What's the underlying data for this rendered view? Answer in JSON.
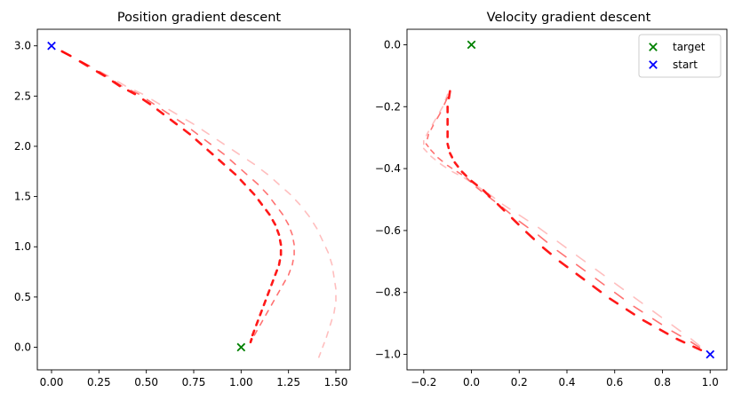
{
  "chart_data": [
    {
      "type": "scatter",
      "title": "Position gradient descent",
      "xlabel": "",
      "ylabel": "",
      "xlim": [
        -0.075,
        1.575
      ],
      "ylim": [
        -0.225,
        3.165
      ],
      "xticks": [
        0.0,
        0.25,
        0.5,
        0.75,
        1.0,
        1.25,
        1.5
      ],
      "xtick_labels": [
        "0.00",
        "0.25",
        "0.50",
        "0.75",
        "1.00",
        "1.25",
        "1.50"
      ],
      "yticks": [
        0.0,
        0.5,
        1.0,
        1.5,
        2.0,
        2.5,
        3.0
      ],
      "ytick_labels": [
        "0.0",
        "0.5",
        "1.0",
        "1.5",
        "2.0",
        "2.5",
        "3.0"
      ],
      "grid": false,
      "legend": null,
      "markers": [
        {
          "label": "target",
          "x": 1.0,
          "y": 0.0,
          "marker": "x",
          "color": "#008000"
        },
        {
          "label": "start",
          "x": 0.0,
          "y": 3.0,
          "marker": "x",
          "color": "#0000ff"
        }
      ],
      "trajectory_color": "#ff0000",
      "trajectories": [
        {
          "opacity": 0.9,
          "points": [
            [
              0.0,
              3.0
            ],
            [
              0.1,
              2.9
            ],
            [
              0.19,
              2.8
            ],
            [
              0.28,
              2.7
            ],
            [
              0.36,
              2.6
            ],
            [
              0.44,
              2.52
            ],
            [
              0.52,
              2.42
            ],
            [
              0.59,
              2.32
            ],
            [
              0.66,
              2.22
            ],
            [
              0.73,
              2.12
            ],
            [
              0.79,
              2.02
            ],
            [
              0.85,
              1.92
            ],
            [
              0.91,
              1.82
            ],
            [
              0.97,
              1.72
            ],
            [
              1.02,
              1.62
            ],
            [
              1.07,
              1.52
            ],
            [
              1.11,
              1.42
            ],
            [
              1.15,
              1.32
            ],
            [
              1.18,
              1.22
            ],
            [
              1.2,
              1.12
            ],
            [
              1.21,
              1.02
            ],
            [
              1.21,
              0.92
            ],
            [
              1.2,
              0.82
            ],
            [
              1.18,
              0.72
            ],
            [
              1.16,
              0.62
            ],
            [
              1.14,
              0.52
            ],
            [
              1.12,
              0.42
            ],
            [
              1.1,
              0.32
            ],
            [
              1.08,
              0.22
            ],
            [
              1.06,
              0.12
            ],
            [
              1.05,
              0.05
            ]
          ]
        },
        {
          "opacity": 0.55,
          "points": [
            [
              0.0,
              3.0
            ],
            [
              0.1,
              2.9
            ],
            [
              0.2,
              2.8
            ],
            [
              0.29,
              2.7
            ],
            [
              0.37,
              2.6
            ],
            [
              0.46,
              2.52
            ],
            [
              0.54,
              2.42
            ],
            [
              0.62,
              2.32
            ],
            [
              0.7,
              2.22
            ],
            [
              0.77,
              2.12
            ],
            [
              0.84,
              2.02
            ],
            [
              0.91,
              1.92
            ],
            [
              0.97,
              1.82
            ],
            [
              1.03,
              1.72
            ],
            [
              1.09,
              1.62
            ],
            [
              1.14,
              1.52
            ],
            [
              1.18,
              1.42
            ],
            [
              1.22,
              1.32
            ],
            [
              1.25,
              1.22
            ],
            [
              1.27,
              1.12
            ],
            [
              1.28,
              1.02
            ],
            [
              1.28,
              0.92
            ],
            [
              1.27,
              0.82
            ],
            [
              1.25,
              0.72
            ],
            [
              1.22,
              0.62
            ],
            [
              1.19,
              0.52
            ],
            [
              1.16,
              0.42
            ],
            [
              1.13,
              0.32
            ],
            [
              1.1,
              0.22
            ],
            [
              1.07,
              0.12
            ],
            [
              1.05,
              0.05
            ]
          ]
        },
        {
          "opacity": 0.25,
          "points": [
            [
              0.0,
              3.0
            ],
            [
              0.1,
              2.9
            ],
            [
              0.2,
              2.8
            ],
            [
              0.3,
              2.7
            ],
            [
              0.39,
              2.6
            ],
            [
              0.48,
              2.52
            ],
            [
              0.57,
              2.42
            ],
            [
              0.66,
              2.32
            ],
            [
              0.75,
              2.22
            ],
            [
              0.83,
              2.12
            ],
            [
              0.91,
              2.02
            ],
            [
              0.99,
              1.92
            ],
            [
              1.07,
              1.82
            ],
            [
              1.14,
              1.72
            ],
            [
              1.2,
              1.62
            ],
            [
              1.26,
              1.52
            ],
            [
              1.31,
              1.42
            ],
            [
              1.36,
              1.3
            ],
            [
              1.4,
              1.18
            ],
            [
              1.43,
              1.06
            ],
            [
              1.46,
              0.94
            ],
            [
              1.48,
              0.82
            ],
            [
              1.49,
              0.7
            ],
            [
              1.5,
              0.58
            ],
            [
              1.5,
              0.46
            ],
            [
              1.49,
              0.34
            ],
            [
              1.47,
              0.22
            ],
            [
              1.45,
              0.1
            ],
            [
              1.43,
              0.0
            ],
            [
              1.41,
              -0.1
            ]
          ]
        }
      ]
    },
    {
      "type": "scatter",
      "title": "Velocity gradient descent",
      "xlabel": "",
      "ylabel": "",
      "xlim": [
        -0.27,
        1.07
      ],
      "ylim": [
        -1.05,
        0.05
      ],
      "xticks": [
        -0.2,
        0.0,
        0.2,
        0.4,
        0.6,
        0.8,
        1.0
      ],
      "xtick_labels": [
        "−0.2",
        "0.0",
        "0.2",
        "0.4",
        "0.6",
        "0.8",
        "1.0"
      ],
      "yticks": [
        -1.0,
        -0.8,
        -0.6,
        -0.4,
        -0.2,
        0.0
      ],
      "ytick_labels": [
        "−1.0",
        "−0.8",
        "−0.6",
        "−0.4",
        "−0.2",
        "0.0"
      ],
      "grid": false,
      "legend": "top-right",
      "legend_entries": [
        {
          "label": "target",
          "marker": "x",
          "color": "#008000"
        },
        {
          "label": "start",
          "marker": "x",
          "color": "#0000ff"
        }
      ],
      "markers": [
        {
          "label": "target",
          "x": 0.0,
          "y": 0.0,
          "marker": "x",
          "color": "#008000"
        },
        {
          "label": "start",
          "x": 1.0,
          "y": -1.0,
          "marker": "x",
          "color": "#0000ff"
        }
      ],
      "trajectory_color": "#ff0000",
      "trajectories": [
        {
          "opacity": 0.9,
          "points": [
            [
              1.0,
              -1.0
            ],
            [
              0.93,
              -0.975
            ],
            [
              0.86,
              -0.95
            ],
            [
              0.79,
              -0.92
            ],
            [
              0.72,
              -0.89
            ],
            [
              0.65,
              -0.855
            ],
            [
              0.58,
              -0.82
            ],
            [
              0.51,
              -0.78
            ],
            [
              0.44,
              -0.74
            ],
            [
              0.37,
              -0.7
            ],
            [
              0.3,
              -0.655
            ],
            [
              0.23,
              -0.605
            ],
            [
              0.17,
              -0.56
            ],
            [
              0.11,
              -0.515
            ],
            [
              0.05,
              -0.47
            ],
            [
              0.0,
              -0.44
            ],
            [
              -0.04,
              -0.41
            ],
            [
              -0.07,
              -0.38
            ],
            [
              -0.09,
              -0.35
            ],
            [
              -0.1,
              -0.32
            ],
            [
              -0.1,
              -0.28
            ],
            [
              -0.1,
              -0.24
            ],
            [
              -0.1,
              -0.2
            ],
            [
              -0.09,
              -0.15
            ]
          ]
        },
        {
          "opacity": 0.55,
          "points": [
            [
              1.0,
              -1.0
            ],
            [
              0.92,
              -0.96
            ],
            [
              0.84,
              -0.925
            ],
            [
              0.76,
              -0.885
            ],
            [
              0.68,
              -0.845
            ],
            [
              0.6,
              -0.8
            ],
            [
              0.52,
              -0.755
            ],
            [
              0.44,
              -0.71
            ],
            [
              0.36,
              -0.665
            ],
            [
              0.28,
              -0.615
            ],
            [
              0.2,
              -0.57
            ],
            [
              0.13,
              -0.525
            ],
            [
              0.07,
              -0.49
            ],
            [
              0.02,
              -0.46
            ],
            [
              -0.02,
              -0.43
            ],
            [
              -0.06,
              -0.41
            ],
            [
              -0.1,
              -0.39
            ],
            [
              -0.14,
              -0.365
            ],
            [
              -0.17,
              -0.34
            ],
            [
              -0.19,
              -0.32
            ],
            [
              -0.18,
              -0.29
            ],
            [
              -0.16,
              -0.26
            ],
            [
              -0.13,
              -0.22
            ],
            [
              -0.1,
              -0.17
            ]
          ]
        },
        {
          "opacity": 0.25,
          "points": [
            [
              1.0,
              -1.0
            ],
            [
              0.92,
              -0.95
            ],
            [
              0.84,
              -0.905
            ],
            [
              0.76,
              -0.86
            ],
            [
              0.68,
              -0.815
            ],
            [
              0.6,
              -0.77
            ],
            [
              0.52,
              -0.725
            ],
            [
              0.44,
              -0.68
            ],
            [
              0.36,
              -0.635
            ],
            [
              0.28,
              -0.59
            ],
            [
              0.2,
              -0.55
            ],
            [
              0.13,
              -0.515
            ],
            [
              0.07,
              -0.48
            ],
            [
              0.02,
              -0.455
            ],
            [
              -0.03,
              -0.43
            ],
            [
              -0.08,
              -0.41
            ],
            [
              -0.13,
              -0.385
            ],
            [
              -0.17,
              -0.36
            ],
            [
              -0.2,
              -0.335
            ],
            [
              -0.2,
              -0.31
            ],
            [
              -0.18,
              -0.28
            ],
            [
              -0.15,
              -0.24
            ],
            [
              -0.12,
              -0.2
            ],
            [
              -0.1,
              -0.16
            ]
          ]
        }
      ]
    }
  ]
}
